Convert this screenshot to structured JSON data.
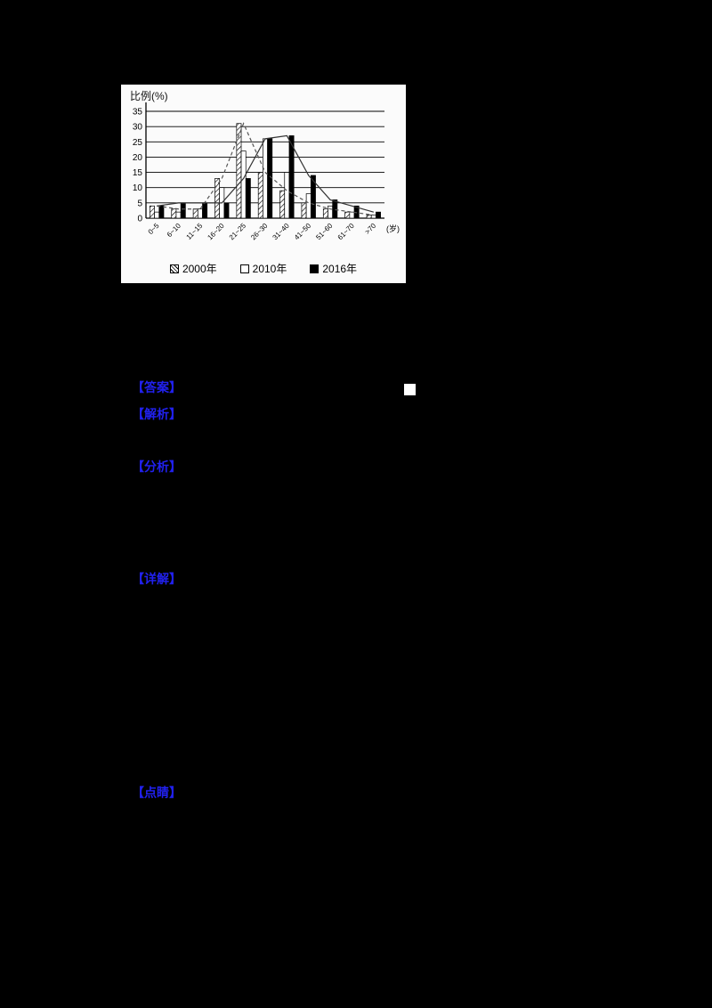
{
  "page": {
    "background_color": "#000000",
    "accent_blue": "#2121ee"
  },
  "chart_data": {
    "type": "bar",
    "title": "比例(%)",
    "unit_label": "(岁)",
    "categories": [
      "0~5",
      "6~10",
      "11~15",
      "16~20",
      "21~25",
      "26~30",
      "31~40",
      "41~50",
      "51~60",
      "61~70",
      ">70"
    ],
    "series": [
      {
        "name": "2000年",
        "style": "hatched",
        "values": [
          4,
          3,
          3,
          13,
          31,
          15,
          9,
          5,
          3,
          2,
          1
        ]
      },
      {
        "name": "2010年",
        "style": "white",
        "values": [
          2,
          2,
          3,
          10,
          22,
          26,
          15,
          8,
          4,
          2,
          1
        ]
      },
      {
        "name": "2016年",
        "style": "black",
        "values": [
          4,
          5,
          5,
          5,
          13,
          26,
          27,
          14,
          6,
          4,
          2
        ]
      }
    ],
    "curves": [
      {
        "series": "2000年",
        "dash": true
      },
      {
        "series": "2016年",
        "dash": false
      }
    ],
    "ylim": [
      0,
      35
    ],
    "yticks": [
      0,
      5,
      10,
      15,
      20,
      25,
      30,
      35
    ],
    "grid": true,
    "legend_position": "bottom"
  },
  "annotations": {
    "labels": [
      {
        "text": "【答案】"
      },
      {
        "text": "【解析】"
      },
      {
        "text": "【分析】"
      },
      {
        "text": "【详解】"
      },
      {
        "text": "【点睛】"
      }
    ]
  }
}
